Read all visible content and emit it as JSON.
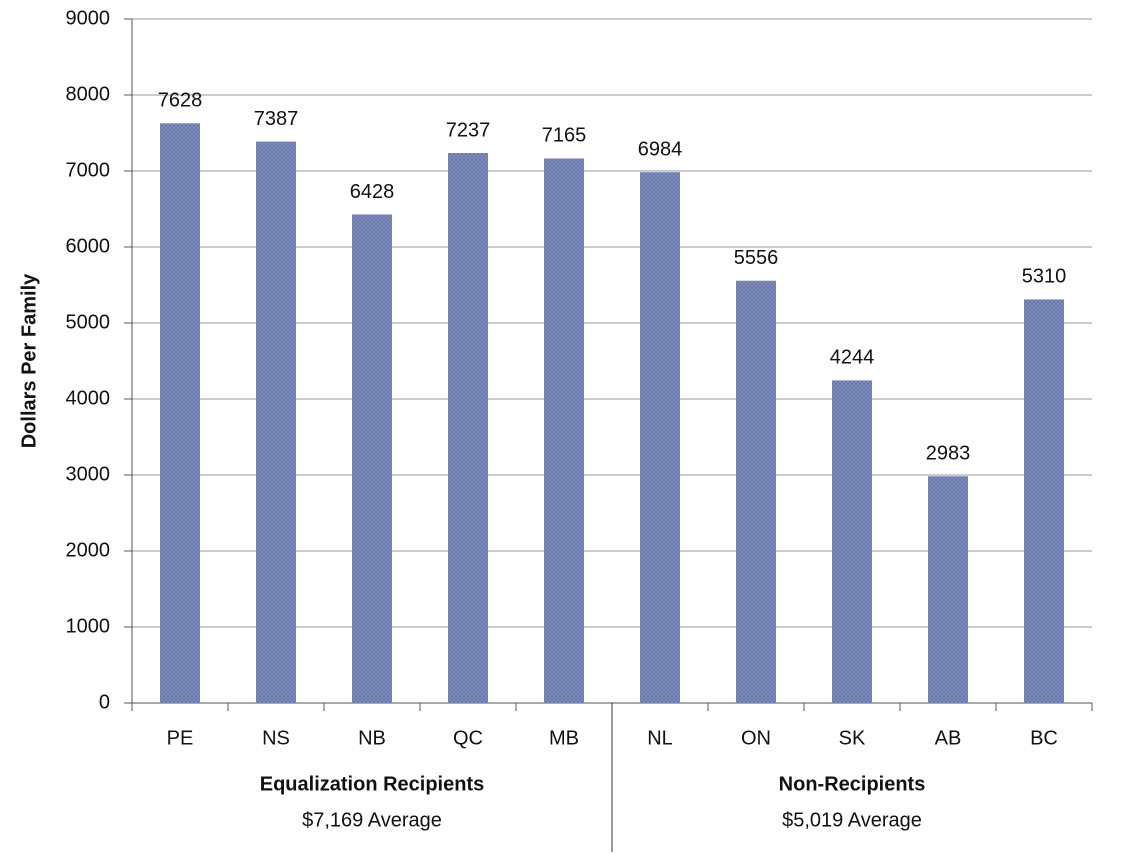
{
  "chart_data": {
    "type": "bar",
    "y_axis_label": "Dollars Per Family",
    "categories": [
      "PE",
      "NS",
      "NB",
      "QC",
      "MB",
      "NL",
      "ON",
      "SK",
      "AB",
      "BC"
    ],
    "values": [
      7628,
      7387,
      6428,
      7237,
      7165,
      6984,
      5556,
      4244,
      2983,
      5310
    ],
    "color": "#7f8fbf",
    "ylim": [
      0,
      9000
    ],
    "yticks": [
      0,
      1000,
      2000,
      3000,
      4000,
      5000,
      6000,
      7000,
      8000,
      9000
    ],
    "grid": true,
    "groups": [
      {
        "name": "Equalization Recipients",
        "note": "$7,169 Average"
      },
      {
        "name": "Non-Recipients",
        "note": "$5,019 Average"
      }
    ]
  }
}
